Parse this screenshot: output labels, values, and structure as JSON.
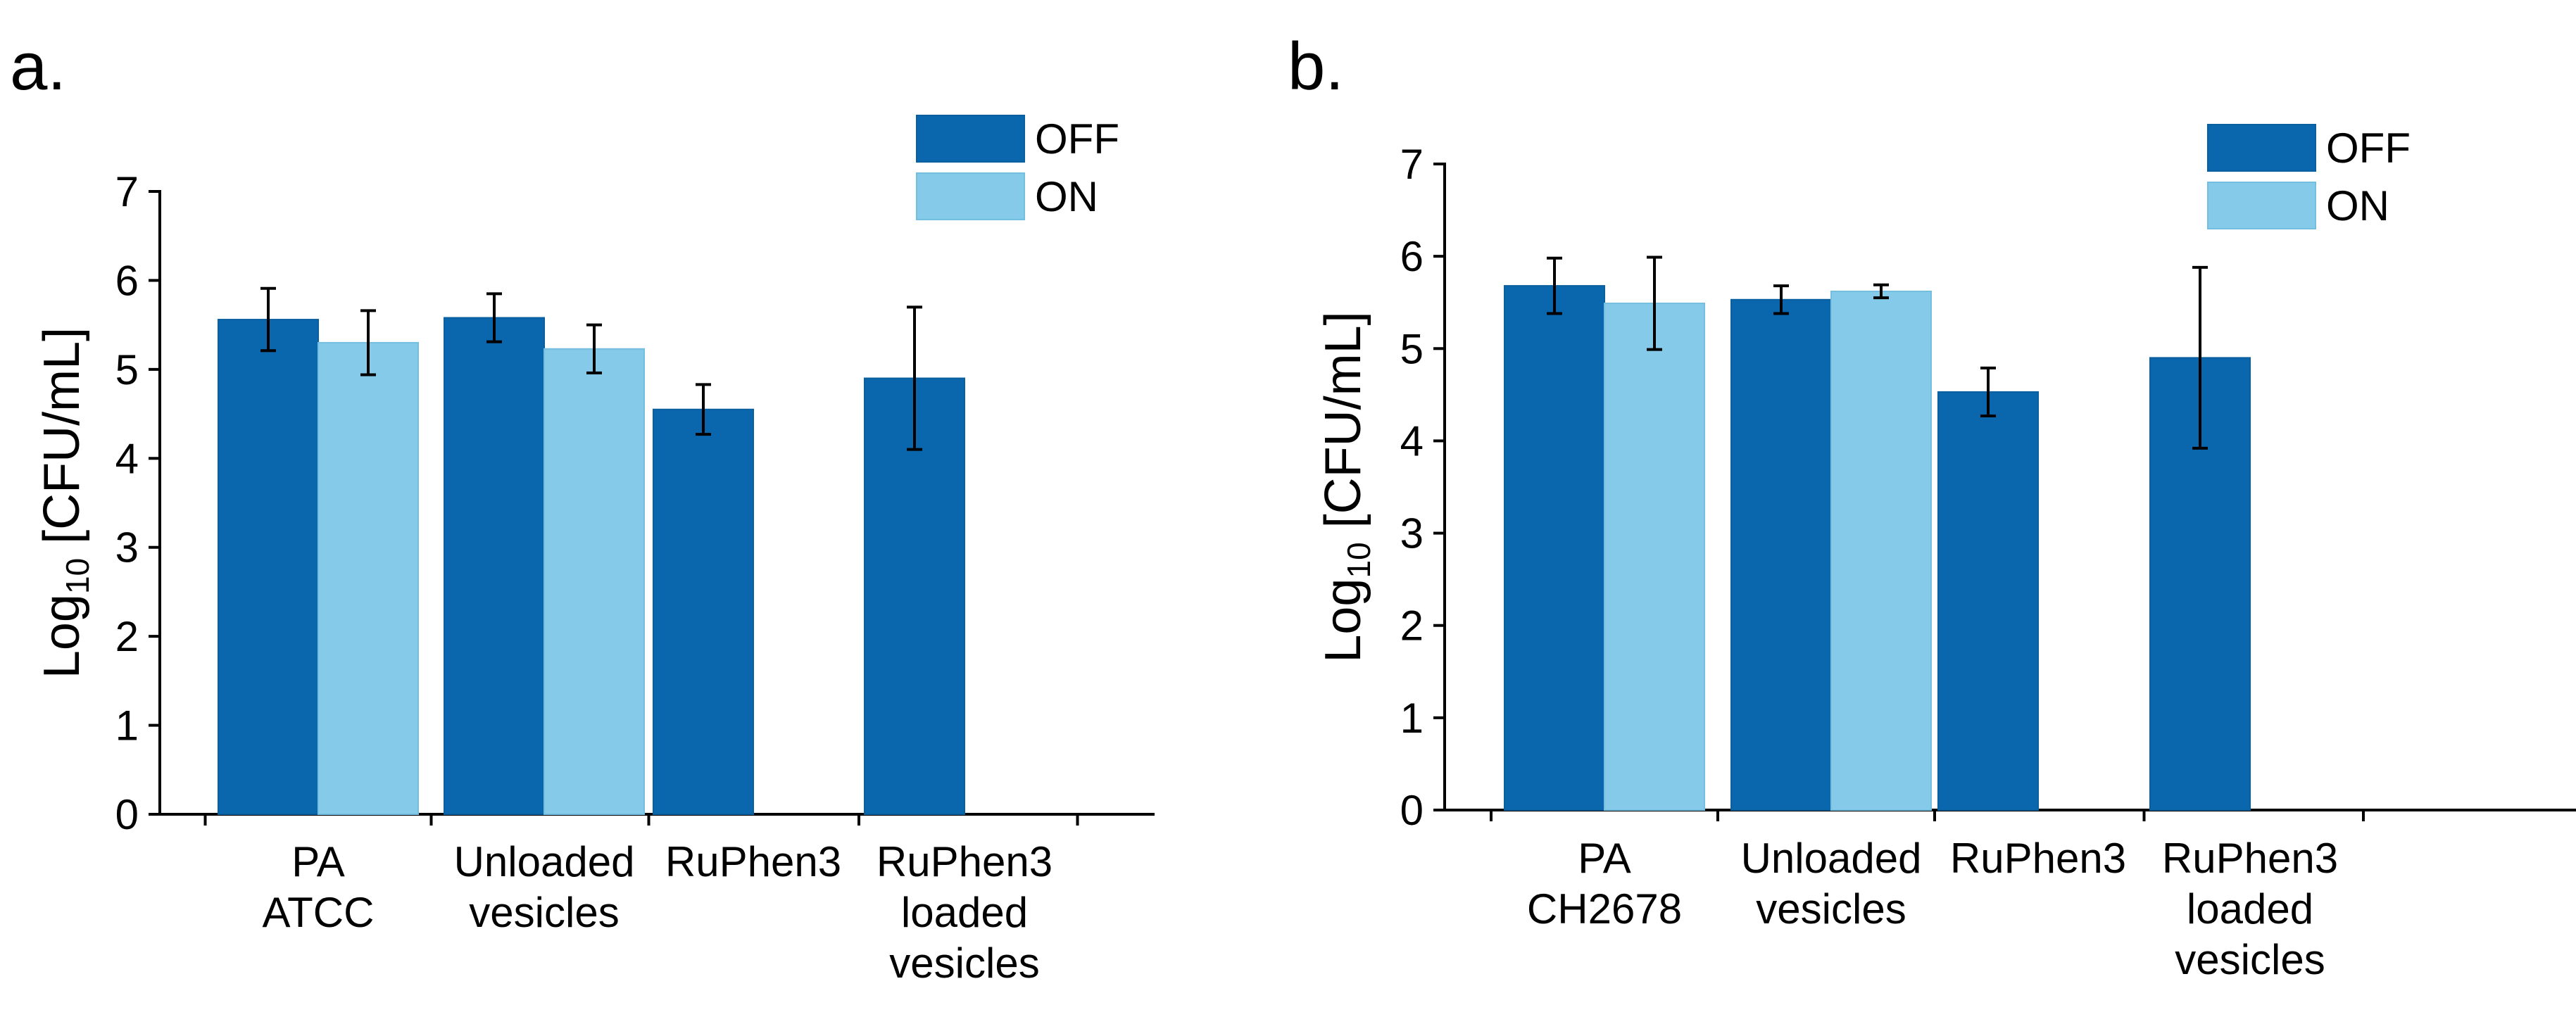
{
  "chart_data": [
    {
      "type": "bar",
      "panel_label": "a.",
      "categories": [
        [
          "PA",
          "ATCC"
        ],
        [
          "Unloaded",
          "vesicles"
        ],
        [
          "RuPhen3"
        ],
        [
          "RuPhen3",
          "loaded",
          "vesicles"
        ]
      ],
      "series": [
        {
          "name": "OFF",
          "color": "#0a66ad",
          "values": [
            5.56,
            5.58,
            4.55,
            4.9
          ],
          "errors": [
            0.35,
            0.27,
            0.28,
            0.8
          ]
        },
        {
          "name": "ON",
          "color": "#85cae8",
          "values": [
            5.3,
            5.23,
            null,
            null
          ],
          "errors": [
            0.36,
            0.27,
            null,
            null
          ]
        }
      ],
      "ylabel_main": "Log",
      "ylabel_sub": "10",
      "ylabel_rest": " [CFU/mL]",
      "ylim": [
        0,
        7
      ],
      "yticks": [
        0,
        1,
        2,
        3,
        4,
        5,
        6,
        7
      ],
      "legend": "top-right"
    },
    {
      "type": "bar",
      "panel_label": "b.",
      "categories": [
        [
          "PA",
          "CH2678"
        ],
        [
          "Unloaded",
          "vesicles"
        ],
        [
          "RuPhen3"
        ],
        [
          "RuPhen3",
          "loaded",
          "vesicles"
        ]
      ],
      "series": [
        {
          "name": "OFF",
          "color": "#0a66ad",
          "values": [
            5.68,
            5.53,
            4.53,
            4.9
          ],
          "errors": [
            0.3,
            0.15,
            0.26,
            0.98
          ]
        },
        {
          "name": "ON",
          "color": "#85cae8",
          "values": [
            5.49,
            5.62,
            null,
            null
          ],
          "errors": [
            0.5,
            0.07,
            null,
            null
          ]
        }
      ],
      "ylabel_main": "Log",
      "ylabel_sub": "10",
      "ylabel_rest": " [CFU/mL]",
      "ylim": [
        0,
        7
      ],
      "yticks": [
        0,
        1,
        2,
        3,
        4,
        5,
        6,
        7
      ],
      "legend": "top-right"
    }
  ]
}
